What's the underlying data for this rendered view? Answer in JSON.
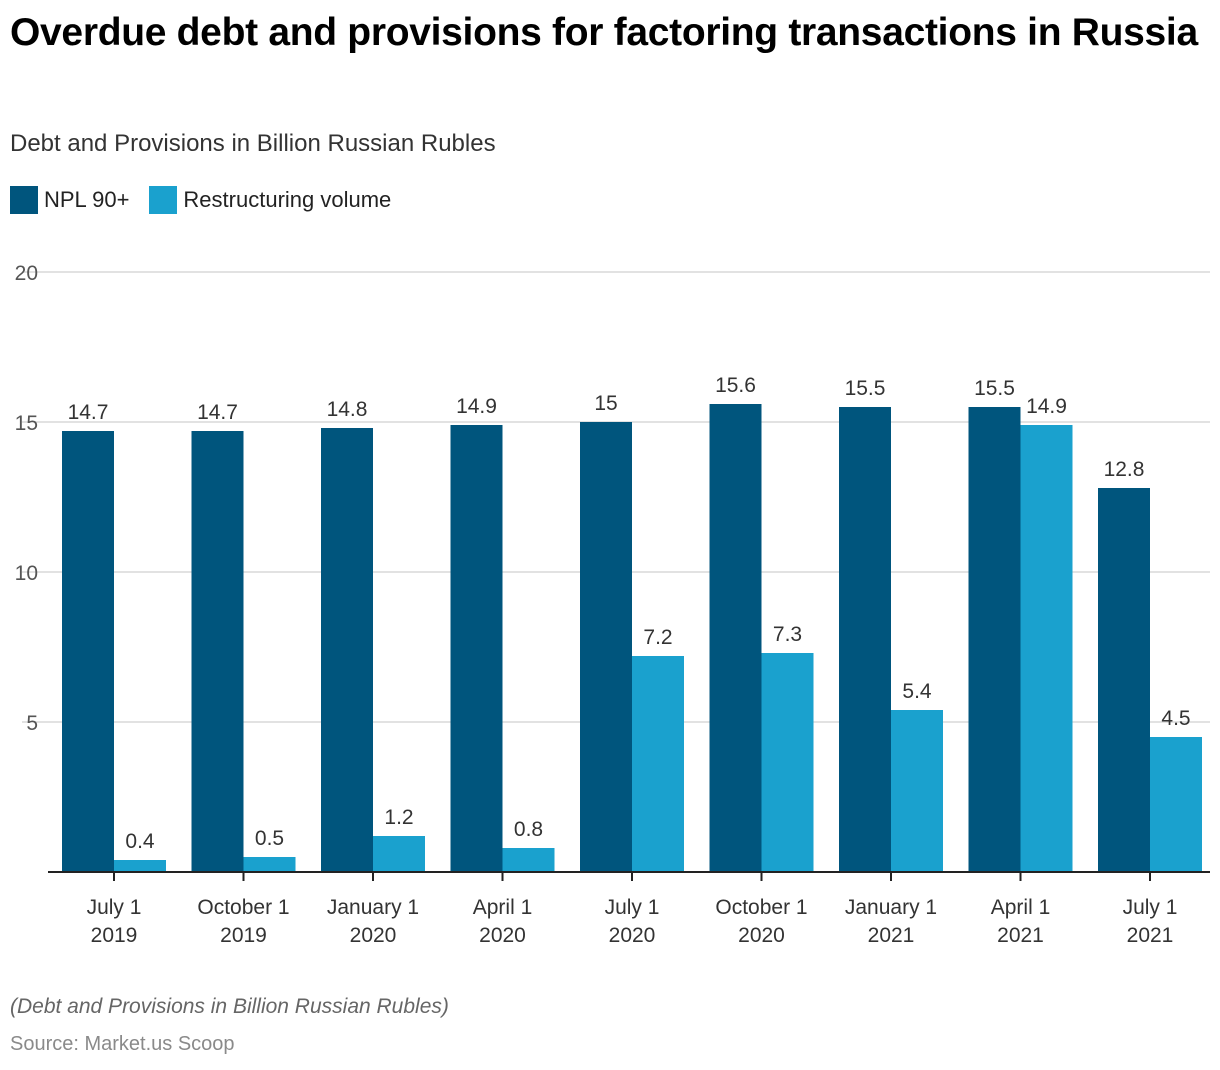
{
  "title": "Overdue debt and provisions for factoring transactions in Russia",
  "subtitle": "Debt and Provisions in Billion Russian Rubles",
  "footer": {
    "note": "(Debt and Provisions in Billion Russian Rubles)",
    "source": "Source: Market.us Scoop"
  },
  "colors": {
    "npl": "#00557d",
    "restructuring": "#1aa1ce",
    "grid": "#d9d9d9",
    "axis": "#222222"
  },
  "chart_data": {
    "type": "bar",
    "title": "Overdue debt and provisions for factoring transactions in Russia",
    "subtitle": "Debt and Provisions in Billion Russian Rubles",
    "xlabel": "",
    "ylabel": "",
    "ylim": [
      0,
      20
    ],
    "yticks": [
      5,
      10,
      15,
      20
    ],
    "grid": true,
    "legend_position": "top-left",
    "categories": [
      [
        "July 1",
        "2019"
      ],
      [
        "October 1",
        "2019"
      ],
      [
        "January 1",
        "2020"
      ],
      [
        "April 1",
        "2020"
      ],
      [
        "July 1",
        "2020"
      ],
      [
        "October 1",
        "2020"
      ],
      [
        "January 1",
        "2021"
      ],
      [
        "April 1",
        "2021"
      ],
      [
        "July 1",
        "2021"
      ]
    ],
    "series": [
      {
        "name": "NPL 90+",
        "values": [
          14.7,
          14.7,
          14.8,
          14.9,
          15,
          15.6,
          15.5,
          15.5,
          12.8
        ]
      },
      {
        "name": "Restructuring volume",
        "values": [
          0.4,
          0.5,
          1.2,
          0.8,
          7.2,
          7.3,
          5.4,
          14.9,
          4.5
        ]
      }
    ]
  }
}
